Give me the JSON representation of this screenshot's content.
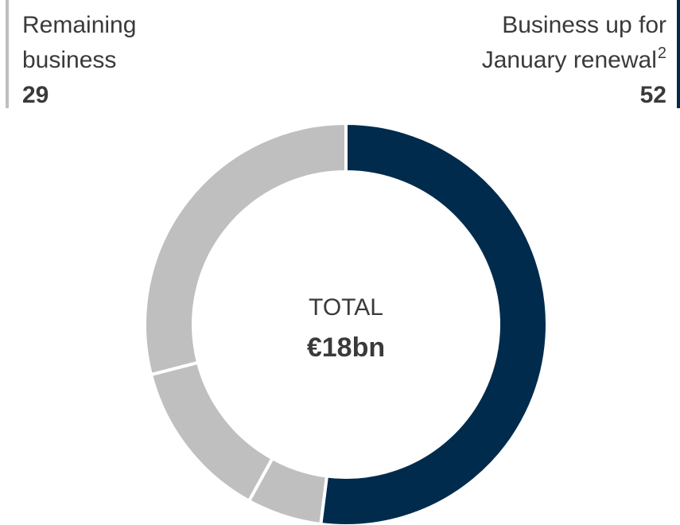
{
  "chart_data": {
    "type": "donut",
    "categories": [
      "Business up for January renewal",
      null,
      null,
      "Remaining business"
    ],
    "category_footnotes": [
      "2",
      null,
      null,
      null
    ],
    "values": [
      52,
      6,
      13,
      29
    ],
    "colors": [
      "#002b4c",
      "#bfbfbf",
      "#bfbfbf",
      "#bfbfbf"
    ],
    "center_label": "TOTAL",
    "center_value": "€18bn"
  }
}
